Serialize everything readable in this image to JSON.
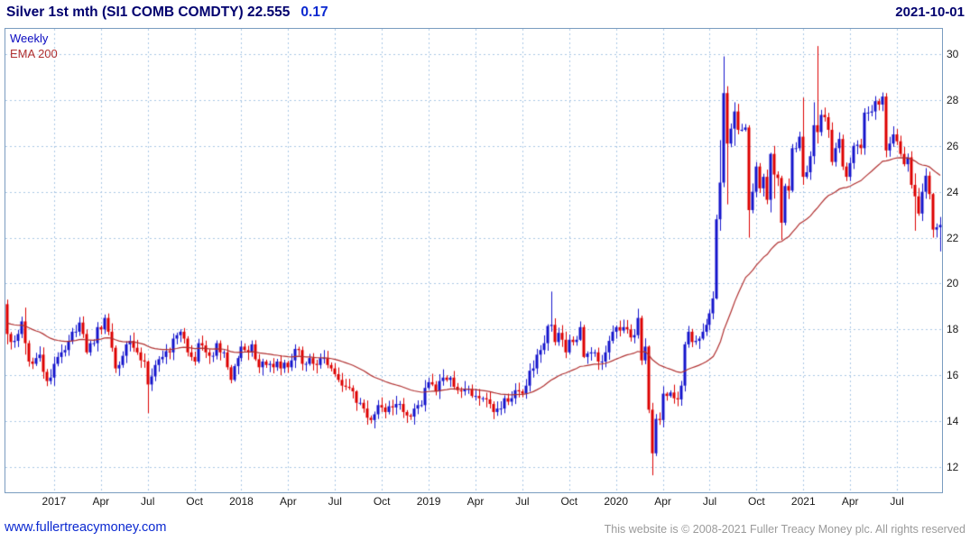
{
  "header": {
    "title": "Silver 1st mth (SI1 COMB COMDTY) 22.555",
    "change": "0.17",
    "date": "2021-10-01"
  },
  "legend": {
    "timeframe": "Weekly",
    "indicator": "EMA 200"
  },
  "footer": {
    "site_link": "www.fullertreacymoney.com",
    "copyright": "This website is © 2008-2021 Fuller Treacy Money plc. All rights reserved"
  },
  "chart_data": {
    "type": "candlestick",
    "title": "Silver 1st mth (SI1 COMB COMDTY)",
    "timeframe": "Weekly",
    "indicator": "EMA 200",
    "last_price": 22.555,
    "change": 0.17,
    "date": "2021-10-01",
    "ylim": [
      10.9,
      31.1
    ],
    "y_ticks": [
      12,
      14,
      16,
      18,
      20,
      22,
      24,
      26,
      28,
      30
    ],
    "x_ticks": [
      {
        "label": "2017",
        "i": 13
      },
      {
        "label": "Apr",
        "i": 26
      },
      {
        "label": "Jul",
        "i": 39
      },
      {
        "label": "Oct",
        "i": 52
      },
      {
        "label": "2018",
        "i": 65
      },
      {
        "label": "Apr",
        "i": 78
      },
      {
        "label": "Jul",
        "i": 91
      },
      {
        "label": "Oct",
        "i": 104
      },
      {
        "label": "2019",
        "i": 117
      },
      {
        "label": "Apr",
        "i": 130
      },
      {
        "label": "Jul",
        "i": 143
      },
      {
        "label": "Oct",
        "i": 156
      },
      {
        "label": "2020",
        "i": 169
      },
      {
        "label": "Apr",
        "i": 182
      },
      {
        "label": "Jul",
        "i": 195
      },
      {
        "label": "Oct",
        "i": 208
      },
      {
        "label": "2021",
        "i": 221
      },
      {
        "label": "Apr",
        "i": 234
      },
      {
        "label": "Jul",
        "i": 247
      }
    ],
    "first_open": 19.1,
    "closes": [
      17.8,
      17.45,
      17.5,
      17.8,
      18.35,
      17.4,
      16.6,
      16.5,
      16.75,
      16.9,
      16.15,
      15.75,
      15.9,
      16.5,
      16.8,
      17.0,
      17.1,
      17.5,
      17.9,
      17.9,
      18.3,
      17.8,
      17.0,
      17.4,
      17.4,
      18.1,
      18.0,
      18.5,
      17.9,
      17.2,
      16.3,
      16.45,
      16.85,
      17.35,
      17.5,
      17.2,
      17.0,
      16.65,
      16.6,
      15.6,
      15.95,
      16.45,
      16.7,
      16.8,
      17.05,
      17.0,
      17.6,
      17.75,
      17.9,
      17.6,
      17.0,
      16.8,
      16.6,
      17.4,
      17.3,
      17.0,
      16.85,
      16.85,
      17.4,
      17.0,
      17.0,
      16.35,
      15.8,
      16.4,
      16.75,
      17.25,
      17.1,
      17.0,
      17.35,
      16.7,
      16.35,
      16.6,
      16.45,
      16.5,
      16.35,
      16.6,
      16.3,
      16.55,
      16.35,
      16.65,
      17.15,
      17.1,
      16.5,
      16.5,
      16.75,
      16.5,
      16.45,
      16.75,
      16.75,
      16.45,
      16.3,
      16.05,
      15.8,
      15.55,
      15.5,
      15.45,
      15.3,
      14.8,
      14.8,
      14.55,
      14.15,
      14.05,
      14.3,
      14.7,
      14.6,
      14.4,
      14.65,
      14.6,
      14.75,
      14.75,
      14.4,
      14.25,
      14.2,
      14.55,
      14.7,
      14.7,
      15.45,
      15.7,
      15.6,
      15.3,
      15.75,
      15.9,
      15.8,
      15.9,
      15.5,
      15.35,
      15.3,
      15.4,
      15.4,
      15.1,
      15.1,
      15.0,
      15.0,
      14.95,
      14.75,
      14.4,
      14.55,
      14.55,
      15.0,
      14.85,
      15.0,
      15.35,
      15.3,
      15.2,
      15.55,
      16.2,
      16.3,
      16.9,
      17.1,
      17.4,
      18.15,
      18.2,
      17.45,
      17.85,
      17.55,
      17.0,
      17.55,
      17.45,
      17.55,
      18.1,
      16.8,
      16.95,
      17.0,
      17.0,
      16.6,
      16.6,
      17.0,
      17.5,
      17.9,
      18.1,
      17.95,
      18.1,
      18.0,
      17.65,
      17.75,
      18.5,
      16.65,
      17.25,
      14.5,
      12.6,
      14.1,
      14.05,
      15.2,
      15.1,
      15.25,
      15.0,
      14.95,
      15.55,
      17.35,
      17.9,
      17.45,
      17.5,
      17.6,
      17.9,
      18.2,
      18.7,
      19.35,
      22.8,
      24.4,
      28.3,
      26.1,
      26.75,
      27.5,
      26.7,
      26.7,
      26.8,
      23.2,
      24.0,
      25.1,
      24.15,
      24.65,
      23.65,
      25.65,
      24.75,
      24.6,
      22.65,
      24.25,
      24.05,
      25.9,
      25.9,
      26.4,
      24.65,
      24.85,
      25.55,
      26.9,
      26.6,
      27.35,
      27.25,
      26.7,
      25.3,
      25.9,
      26.3,
      25.1,
      24.65,
      25.25,
      26.0,
      26.05,
      25.9,
      27.45,
      27.45,
      27.5,
      27.95,
      27.8,
      28.15,
      25.8,
      26.1,
      26.5,
      26.2,
      25.65,
      25.2,
      25.5,
      24.3,
      23.8,
      23.05,
      24.0,
      24.7,
      23.9,
      22.35,
      22.45,
      22.555
    ],
    "wick_overrides": {
      "0": [
        19.3,
        17.35
      ],
      "5": [
        18.95,
        16.9
      ],
      "27": [
        18.65,
        17.8
      ],
      "30": [
        17.3,
        16.1
      ],
      "39": [
        16.65,
        14.35
      ],
      "62": [
        16.45,
        15.65
      ],
      "97": [
        15.35,
        14.45
      ],
      "101": [
        14.25,
        13.9
      ],
      "151": [
        19.65,
        17.9
      ],
      "159": [
        18.35,
        17.5
      ],
      "160": [
        18.2,
        16.75
      ],
      "175": [
        18.9,
        17.6
      ],
      "176": [
        18.6,
        16.45
      ],
      "178": [
        17.3,
        14.35
      ],
      "179": [
        14.8,
        11.64
      ],
      "197": [
        23.0,
        19.3
      ],
      "198": [
        26.25,
        22.3
      ],
      "199": [
        29.9,
        24.2
      ],
      "200": [
        28.6,
        23.45
      ],
      "202": [
        27.9,
        26.0
      ],
      "206": [
        26.9,
        22.0
      ],
      "212": [
        25.7,
        23.1
      ],
      "213": [
        26.0,
        23.7
      ],
      "215": [
        24.7,
        21.9
      ],
      "221": [
        28.1,
        24.3
      ],
      "224": [
        27.9,
        25.2
      ],
      "225": [
        30.35,
        26.1
      ],
      "244": [
        28.3,
        25.5
      ],
      "252": [
        24.8,
        22.3
      ],
      "257": [
        23.95,
        22.0
      ],
      "259": [
        22.9,
        21.4
      ]
    },
    "ema_render_period": 40,
    "ema_seed": 18.3,
    "colors": {
      "up": "#1414cc",
      "down": "#dd0000",
      "ema": "#b03030",
      "grid": "#a9c6e4",
      "frame": "#7a9cc0"
    }
  }
}
